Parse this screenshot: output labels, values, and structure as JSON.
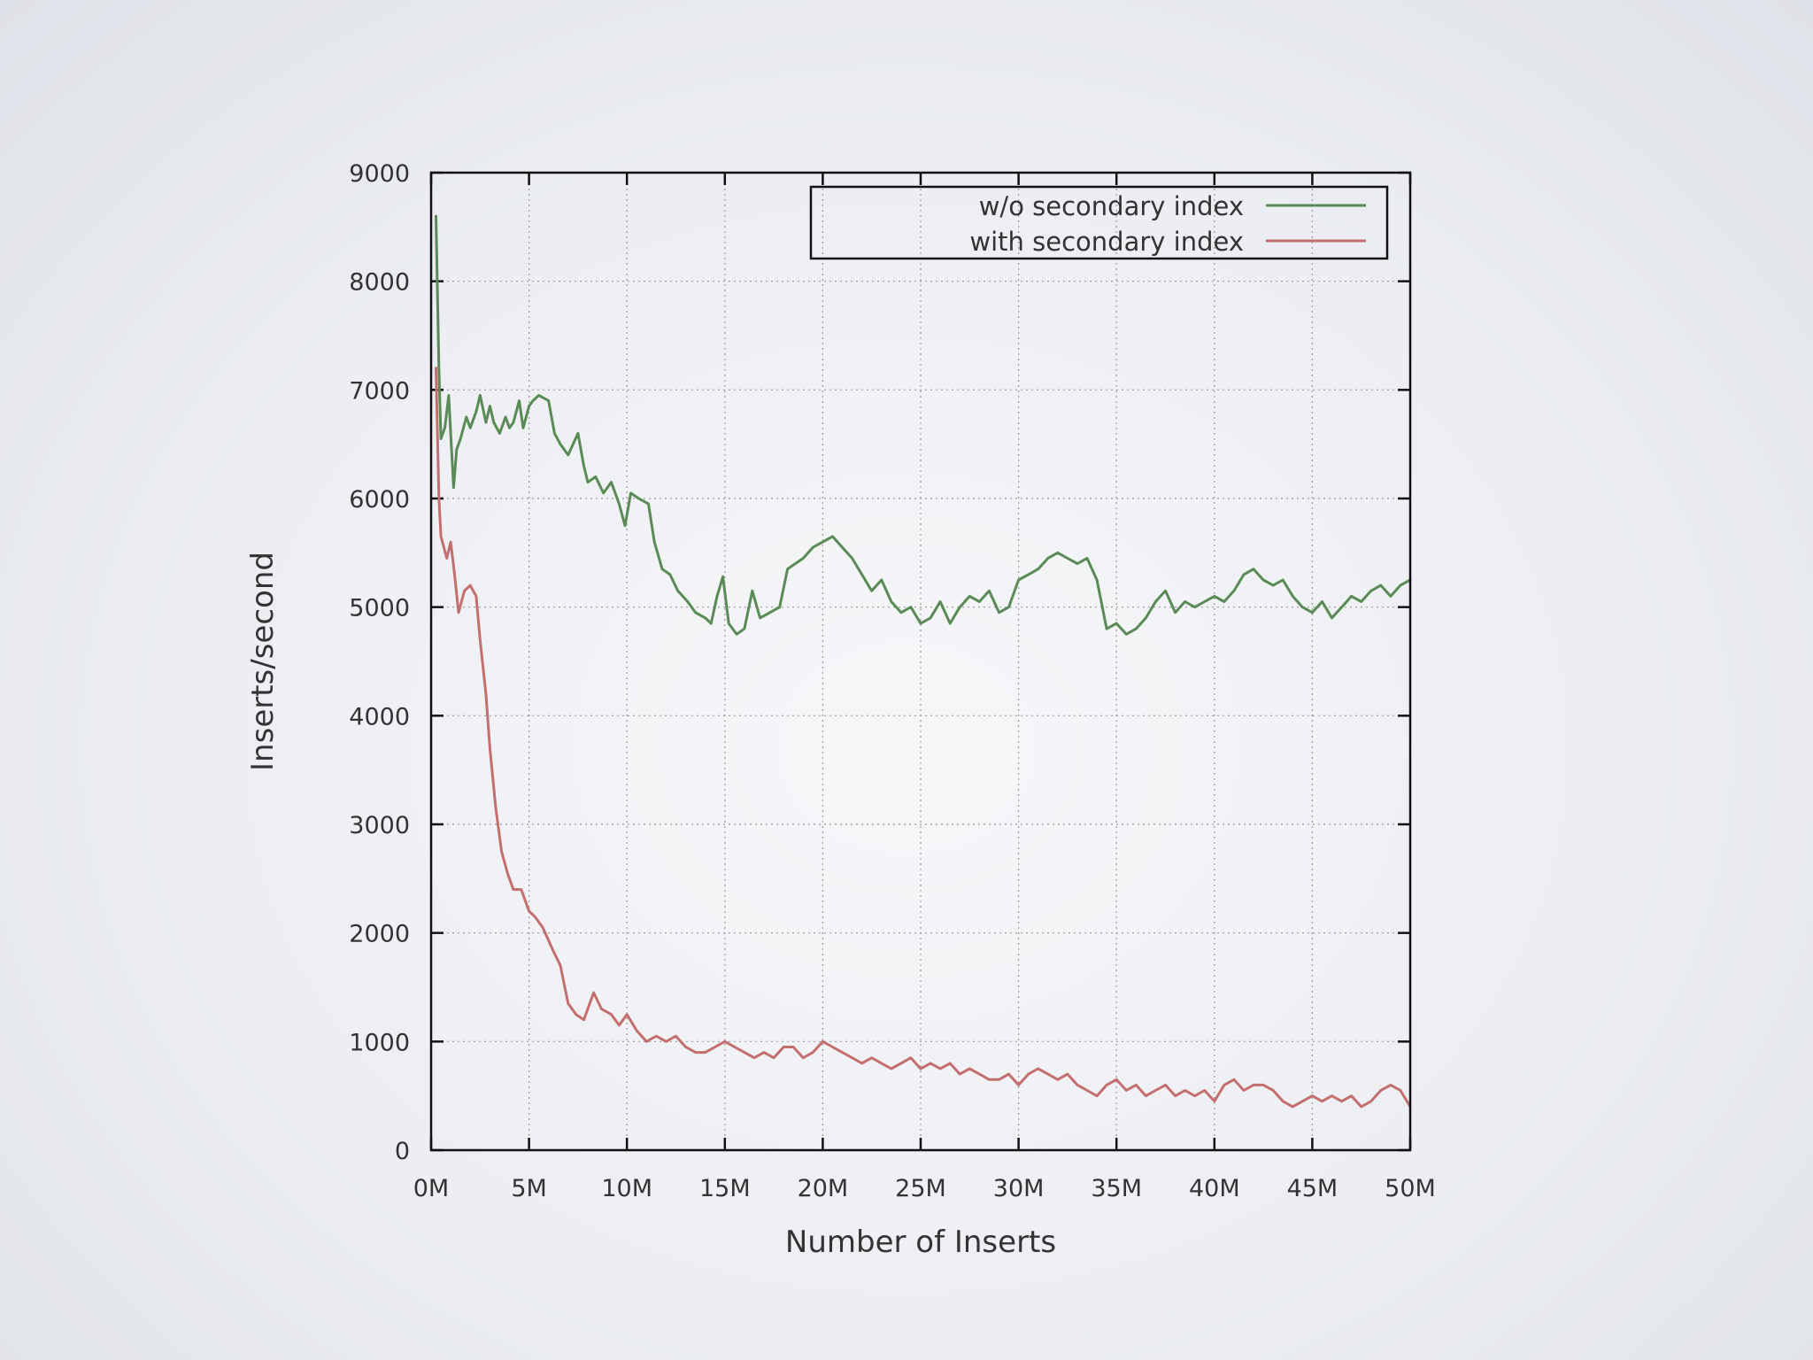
{
  "chart_data": {
    "type": "line",
    "title": "",
    "xlabel": "Number of Inserts",
    "ylabel": "Inserts/second",
    "xlim": [
      0,
      50
    ],
    "ylim": [
      0,
      9000
    ],
    "x_unit": "M",
    "grid": true,
    "legend_position": "top-right",
    "x_tick_labels": [
      "0M",
      "5M",
      "10M",
      "15M",
      "20M",
      "25M",
      "30M",
      "35M",
      "40M",
      "45M",
      "50M"
    ],
    "y_tick_labels": [
      "0",
      "1000",
      "2000",
      "3000",
      "4000",
      "5000",
      "6000",
      "7000",
      "8000",
      "9000"
    ],
    "series": [
      {
        "name": "w/o secondary index",
        "color": "#5a8a56",
        "points": [
          [
            0.25,
            8600
          ],
          [
            0.4,
            7200
          ],
          [
            0.5,
            6550
          ],
          [
            0.7,
            6650
          ],
          [
            0.9,
            6950
          ],
          [
            1.0,
            6600
          ],
          [
            1.15,
            6100
          ],
          [
            1.3,
            6450
          ],
          [
            1.5,
            6550
          ],
          [
            1.8,
            6750
          ],
          [
            2.0,
            6650
          ],
          [
            2.3,
            6800
          ],
          [
            2.5,
            6950
          ],
          [
            2.8,
            6700
          ],
          [
            3.0,
            6850
          ],
          [
            3.2,
            6700
          ],
          [
            3.5,
            6600
          ],
          [
            3.8,
            6750
          ],
          [
            4.0,
            6650
          ],
          [
            4.2,
            6700
          ],
          [
            4.5,
            6900
          ],
          [
            4.7,
            6650
          ],
          [
            5.0,
            6850
          ],
          [
            5.2,
            6900
          ],
          [
            5.5,
            6950
          ],
          [
            6.0,
            6900
          ],
          [
            6.3,
            6600
          ],
          [
            6.6,
            6500
          ],
          [
            7.0,
            6400
          ],
          [
            7.5,
            6600
          ],
          [
            7.8,
            6300
          ],
          [
            8.0,
            6150
          ],
          [
            8.4,
            6200
          ],
          [
            8.8,
            6050
          ],
          [
            9.2,
            6150
          ],
          [
            9.6,
            5950
          ],
          [
            9.9,
            5750
          ],
          [
            10.2,
            6050
          ],
          [
            10.6,
            6000
          ],
          [
            11.1,
            5950
          ],
          [
            11.4,
            5600
          ],
          [
            11.8,
            5350
          ],
          [
            12.2,
            5300
          ],
          [
            12.6,
            5150
          ],
          [
            13.1,
            5050
          ],
          [
            13.5,
            4950
          ],
          [
            14.0,
            4900
          ],
          [
            14.3,
            4850
          ],
          [
            14.6,
            5100
          ],
          [
            14.9,
            5280
          ],
          [
            15.2,
            4850
          ],
          [
            15.6,
            4750
          ],
          [
            16.0,
            4800
          ],
          [
            16.4,
            5150
          ],
          [
            16.8,
            4900
          ],
          [
            17.3,
            4950
          ],
          [
            17.8,
            5000
          ],
          [
            18.2,
            5350
          ],
          [
            18.6,
            5400
          ],
          [
            19.0,
            5450
          ],
          [
            19.5,
            5550
          ],
          [
            20.0,
            5600
          ],
          [
            20.5,
            5650
          ],
          [
            21.0,
            5550
          ],
          [
            21.5,
            5450
          ],
          [
            22.0,
            5300
          ],
          [
            22.5,
            5150
          ],
          [
            23.0,
            5250
          ],
          [
            23.5,
            5050
          ],
          [
            24.0,
            4950
          ],
          [
            24.5,
            5000
          ],
          [
            25.0,
            4850
          ],
          [
            25.5,
            4900
          ],
          [
            26.0,
            5050
          ],
          [
            26.5,
            4850
          ],
          [
            27.0,
            5000
          ],
          [
            27.5,
            5100
          ],
          [
            28.0,
            5050
          ],
          [
            28.5,
            5150
          ],
          [
            29.0,
            4950
          ],
          [
            29.5,
            5000
          ],
          [
            30.0,
            5250
          ],
          [
            30.5,
            5300
          ],
          [
            31.0,
            5350
          ],
          [
            31.5,
            5450
          ],
          [
            32.0,
            5500
          ],
          [
            32.5,
            5450
          ],
          [
            33.0,
            5400
          ],
          [
            33.5,
            5450
          ],
          [
            34.0,
            5250
          ],
          [
            34.5,
            4800
          ],
          [
            35.0,
            4850
          ],
          [
            35.5,
            4750
          ],
          [
            36.0,
            4800
          ],
          [
            36.5,
            4900
          ],
          [
            37.0,
            5050
          ],
          [
            37.5,
            5150
          ],
          [
            38.0,
            4950
          ],
          [
            38.5,
            5050
          ],
          [
            39.0,
            5000
          ],
          [
            39.5,
            5050
          ],
          [
            40.0,
            5100
          ],
          [
            40.5,
            5050
          ],
          [
            41.0,
            5150
          ],
          [
            41.5,
            5300
          ],
          [
            42.0,
            5350
          ],
          [
            42.5,
            5250
          ],
          [
            43.0,
            5200
          ],
          [
            43.5,
            5250
          ],
          [
            44.0,
            5100
          ],
          [
            44.5,
            5000
          ],
          [
            45.0,
            4950
          ],
          [
            45.5,
            5050
          ],
          [
            46.0,
            4900
          ],
          [
            46.5,
            5000
          ],
          [
            47.0,
            5100
          ],
          [
            47.5,
            5050
          ],
          [
            48.0,
            5150
          ],
          [
            48.5,
            5200
          ],
          [
            49.0,
            5100
          ],
          [
            49.5,
            5200
          ],
          [
            50.0,
            5250
          ]
        ]
      },
      {
        "name": "with secondary index",
        "color": "#c46f6f",
        "points": [
          [
            0.25,
            7200
          ],
          [
            0.4,
            6000
          ],
          [
            0.5,
            5650
          ],
          [
            0.8,
            5450
          ],
          [
            1.0,
            5600
          ],
          [
            1.2,
            5300
          ],
          [
            1.4,
            4950
          ],
          [
            1.7,
            5150
          ],
          [
            2.0,
            5200
          ],
          [
            2.3,
            5100
          ],
          [
            2.5,
            4700
          ],
          [
            2.8,
            4200
          ],
          [
            3.0,
            3700
          ],
          [
            3.3,
            3150
          ],
          [
            3.6,
            2750
          ],
          [
            3.9,
            2550
          ],
          [
            4.2,
            2400
          ],
          [
            4.6,
            2400
          ],
          [
            5.0,
            2200
          ],
          [
            5.3,
            2150
          ],
          [
            5.7,
            2050
          ],
          [
            6.2,
            1850
          ],
          [
            6.6,
            1700
          ],
          [
            7.0,
            1350
          ],
          [
            7.4,
            1250
          ],
          [
            7.8,
            1200
          ],
          [
            8.3,
            1450
          ],
          [
            8.7,
            1300
          ],
          [
            9.2,
            1250
          ],
          [
            9.6,
            1150
          ],
          [
            10.0,
            1250
          ],
          [
            10.5,
            1100
          ],
          [
            11.0,
            1000
          ],
          [
            11.5,
            1050
          ],
          [
            12.0,
            1000
          ],
          [
            12.5,
            1050
          ],
          [
            13.0,
            950
          ],
          [
            13.5,
            900
          ],
          [
            14.0,
            900
          ],
          [
            14.5,
            950
          ],
          [
            15.0,
            1000
          ],
          [
            15.5,
            950
          ],
          [
            16.0,
            900
          ],
          [
            16.5,
            850
          ],
          [
            17.0,
            900
          ],
          [
            17.5,
            850
          ],
          [
            18.0,
            950
          ],
          [
            18.5,
            950
          ],
          [
            19.0,
            850
          ],
          [
            19.5,
            900
          ],
          [
            20.0,
            1000
          ],
          [
            20.5,
            950
          ],
          [
            21.0,
            900
          ],
          [
            21.5,
            850
          ],
          [
            22.0,
            800
          ],
          [
            22.5,
            850
          ],
          [
            23.0,
            800
          ],
          [
            23.5,
            750
          ],
          [
            24.0,
            800
          ],
          [
            24.5,
            850
          ],
          [
            25.0,
            750
          ],
          [
            25.5,
            800
          ],
          [
            26.0,
            750
          ],
          [
            26.5,
            800
          ],
          [
            27.0,
            700
          ],
          [
            27.5,
            750
          ],
          [
            28.0,
            700
          ],
          [
            28.5,
            650
          ],
          [
            29.0,
            650
          ],
          [
            29.5,
            700
          ],
          [
            30.0,
            600
          ],
          [
            30.5,
            700
          ],
          [
            31.0,
            750
          ],
          [
            31.5,
            700
          ],
          [
            32.0,
            650
          ],
          [
            32.5,
            700
          ],
          [
            33.0,
            600
          ],
          [
            33.5,
            550
          ],
          [
            34.0,
            500
          ],
          [
            34.5,
            600
          ],
          [
            35.0,
            650
          ],
          [
            35.5,
            550
          ],
          [
            36.0,
            600
          ],
          [
            36.5,
            500
          ],
          [
            37.0,
            550
          ],
          [
            37.5,
            600
          ],
          [
            38.0,
            500
          ],
          [
            38.5,
            550
          ],
          [
            39.0,
            500
          ],
          [
            39.5,
            550
          ],
          [
            40.0,
            450
          ],
          [
            40.5,
            600
          ],
          [
            41.0,
            650
          ],
          [
            41.5,
            550
          ],
          [
            42.0,
            600
          ],
          [
            42.5,
            600
          ],
          [
            43.0,
            550
          ],
          [
            43.5,
            450
          ],
          [
            44.0,
            400
          ],
          [
            44.5,
            450
          ],
          [
            45.0,
            500
          ],
          [
            45.5,
            450
          ],
          [
            46.0,
            500
          ],
          [
            46.5,
            450
          ],
          [
            47.0,
            500
          ],
          [
            47.5,
            400
          ],
          [
            48.0,
            450
          ],
          [
            48.5,
            550
          ],
          [
            49.0,
            600
          ],
          [
            49.5,
            550
          ],
          [
            50.0,
            400
          ]
        ]
      }
    ]
  }
}
